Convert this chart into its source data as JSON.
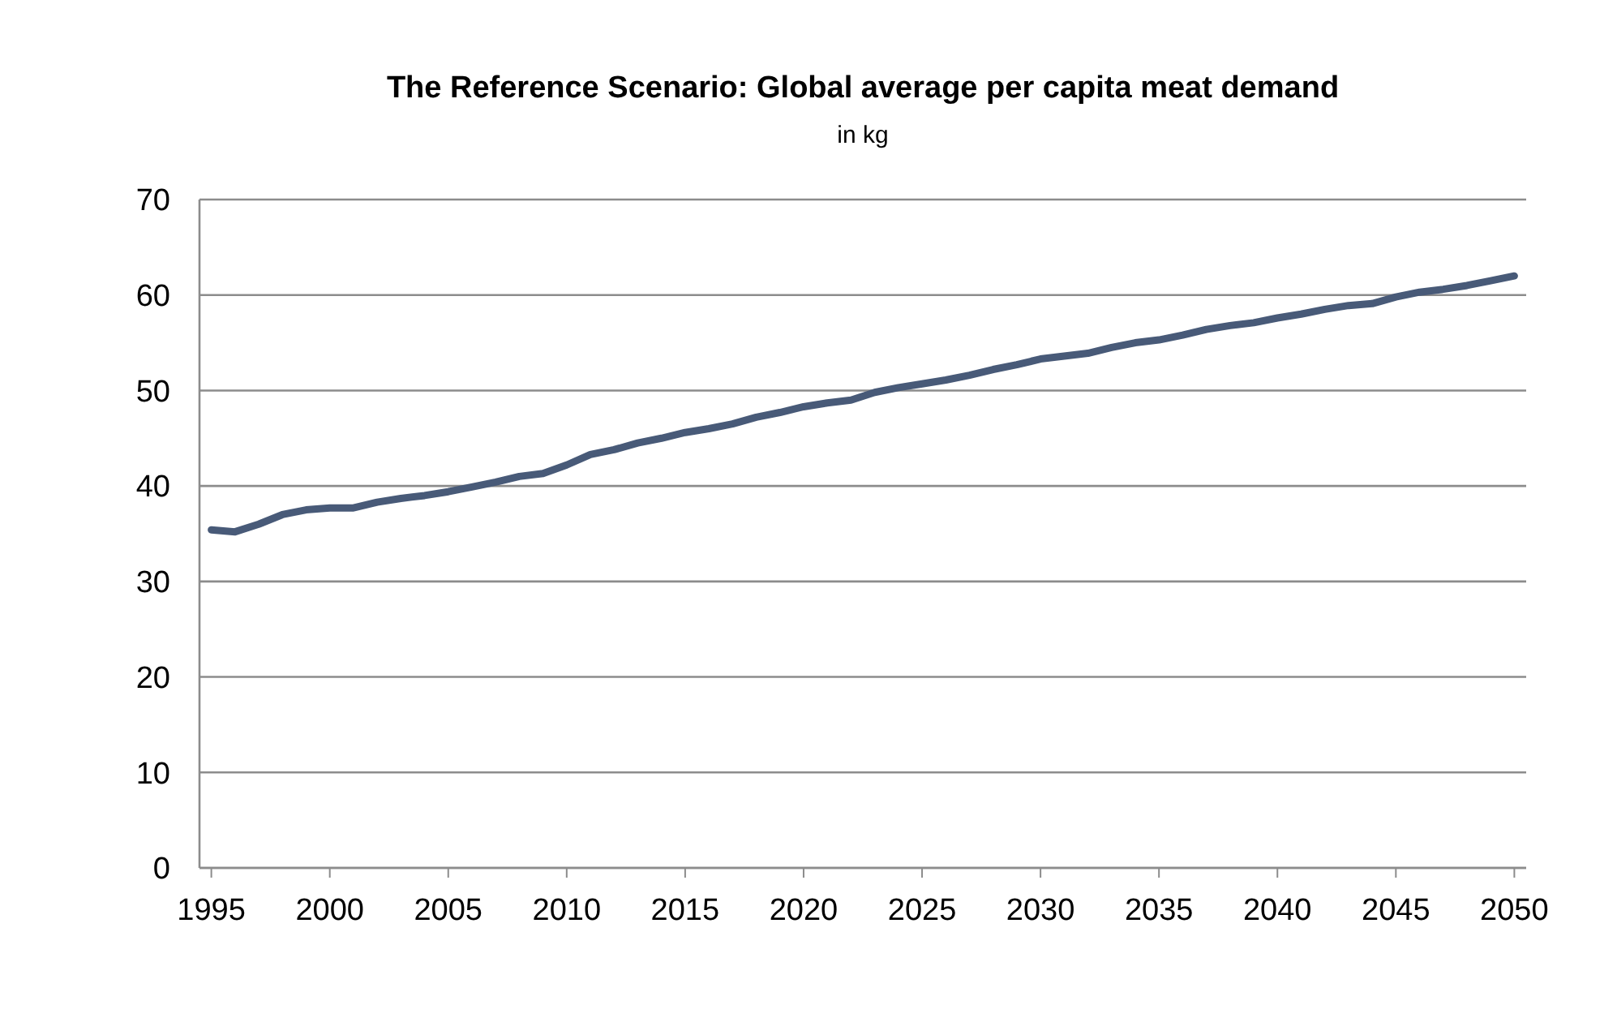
{
  "chart_data": {
    "type": "line",
    "title": "The Reference Scenario: Global average per capita meat demand",
    "subtitle": "in kg",
    "x": [
      1995,
      1996,
      1997,
      1998,
      1999,
      2000,
      2001,
      2002,
      2003,
      2004,
      2005,
      2006,
      2007,
      2008,
      2009,
      2010,
      2011,
      2012,
      2013,
      2014,
      2015,
      2016,
      2017,
      2018,
      2019,
      2020,
      2021,
      2022,
      2023,
      2024,
      2025,
      2026,
      2027,
      2028,
      2029,
      2030,
      2031,
      2032,
      2033,
      2034,
      2035,
      2036,
      2037,
      2038,
      2039,
      2040,
      2041,
      2042,
      2043,
      2044,
      2045,
      2046,
      2047,
      2048,
      2049,
      2050
    ],
    "series": [
      {
        "color": "#485a78",
        "values": [
          35.4,
          35.2,
          36.0,
          37.0,
          37.5,
          37.7,
          37.7,
          38.3,
          38.7,
          39.0,
          39.4,
          39.9,
          40.4,
          41.0,
          41.3,
          42.2,
          43.3,
          43.8,
          44.5,
          45.0,
          45.6,
          46.0,
          46.5,
          47.2,
          47.7,
          48.3,
          48.7,
          49.0,
          49.8,
          50.3,
          50.7,
          51.1,
          51.6,
          52.2,
          52.7,
          53.3,
          53.6,
          53.9,
          54.5,
          55.0,
          55.3,
          55.8,
          56.4,
          56.8,
          57.1,
          57.6,
          58.0,
          58.5,
          58.9,
          59.1,
          59.8,
          60.3,
          60.6,
          61.0,
          61.5,
          62.0
        ]
      }
    ],
    "xlim": [
      1994.5,
      2050.5
    ],
    "xticks": [
      1995,
      2000,
      2005,
      2010,
      2015,
      2020,
      2025,
      2030,
      2035,
      2040,
      2045,
      2050
    ],
    "ylim": [
      0,
      70
    ],
    "yticks": [
      0,
      10,
      20,
      30,
      40,
      50,
      60,
      70
    ],
    "grid": "y",
    "marker": "none",
    "line_style": "solid"
  }
}
